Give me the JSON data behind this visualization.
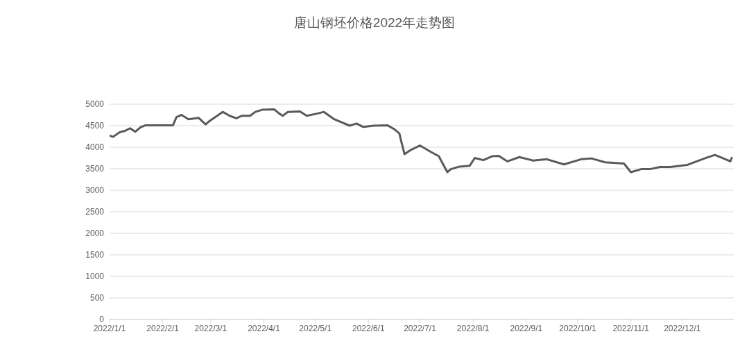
{
  "chart_data": {
    "type": "line",
    "title": "唐山钢坯价格2022年走势图",
    "x": [
      "2022-01-01",
      "2022-01-03",
      "2022-01-07",
      "2022-01-10",
      "2022-01-13",
      "2022-01-16",
      "2022-01-19",
      "2022-01-22",
      "2022-02-01",
      "2022-02-07",
      "2022-02-09",
      "2022-02-12",
      "2022-02-16",
      "2022-02-22",
      "2022-02-26",
      "2022-02-28",
      "2022-03-08",
      "2022-03-12",
      "2022-03-16",
      "2022-03-19",
      "2022-03-24",
      "2022-03-27",
      "2022-03-31",
      "2022-04-07",
      "2022-04-10",
      "2022-04-12",
      "2022-04-15",
      "2022-04-22",
      "2022-04-26",
      "2022-05-02",
      "2022-05-06",
      "2022-05-12",
      "2022-05-21",
      "2022-05-25",
      "2022-05-29",
      "2022-06-04",
      "2022-06-12",
      "2022-06-16",
      "2022-06-19",
      "2022-06-20",
      "2022-06-22",
      "2022-06-25",
      "2022-07-01",
      "2022-07-07",
      "2022-07-12",
      "2022-07-17",
      "2022-07-19",
      "2022-07-24",
      "2022-07-30",
      "2022-08-02",
      "2022-08-07",
      "2022-08-12",
      "2022-08-16",
      "2022-08-21",
      "2022-08-28",
      "2022-09-05",
      "2022-09-13",
      "2022-09-23",
      "2022-10-03",
      "2022-10-09",
      "2022-10-17",
      "2022-10-28",
      "2022-11-01",
      "2022-11-07",
      "2022-11-12",
      "2022-11-18",
      "2022-11-24",
      "2022-12-04",
      "2022-12-14",
      "2022-12-20",
      "2022-12-25",
      "2022-12-29",
      "2022-12-30"
    ],
    "series": [
      {
        "color": "#5a5a5a",
        "values": [
          4270,
          4240,
          4350,
          4380,
          4440,
          4360,
          4460,
          4510,
          4510,
          4510,
          4700,
          4750,
          4650,
          4680,
          4530,
          4600,
          4820,
          4730,
          4670,
          4730,
          4730,
          4820,
          4870,
          4880,
          4780,
          4730,
          4820,
          4830,
          4730,
          4780,
          4820,
          4650,
          4500,
          4550,
          4470,
          4500,
          4510,
          4420,
          4320,
          4150,
          3840,
          3920,
          4040,
          3900,
          3790,
          3420,
          3490,
          3550,
          3570,
          3750,
          3700,
          3790,
          3800,
          3670,
          3770,
          3690,
          3720,
          3600,
          3720,
          3740,
          3650,
          3620,
          3420,
          3490,
          3490,
          3540,
          3540,
          3590,
          3740,
          3820,
          3740,
          3670,
          3770
        ]
      }
    ],
    "xlim": [
      "2022-01-01",
      "2022-12-31"
    ],
    "xticks": [
      {
        "value": "2022-01-01",
        "label": "2022/1/1"
      },
      {
        "value": "2022-02-01",
        "label": "2022/2/1"
      },
      {
        "value": "2022-03-01",
        "label": "2022/3/1"
      },
      {
        "value": "2022-04-01",
        "label": "2022/4/1"
      },
      {
        "value": "2022-05-01",
        "label": "2022/5/1"
      },
      {
        "value": "2022-06-01",
        "label": "2022/6/1"
      },
      {
        "value": "2022-07-01",
        "label": "2022/7/1"
      },
      {
        "value": "2022-08-01",
        "label": "2022/8/1"
      },
      {
        "value": "2022-09-01",
        "label": "2022/9/1"
      },
      {
        "value": "2022-10-01",
        "label": "2022/10/1"
      },
      {
        "value": "2022-11-01",
        "label": "2022/11/1"
      },
      {
        "value": "2022-12-01",
        "label": "2022/12/1"
      }
    ],
    "ylim": [
      0,
      5000
    ],
    "yticks": [
      0,
      500,
      1000,
      1500,
      2000,
      2500,
      3000,
      3500,
      4000,
      4500,
      5000
    ],
    "grid": "y",
    "marker": "none",
    "line_style": "solid"
  }
}
